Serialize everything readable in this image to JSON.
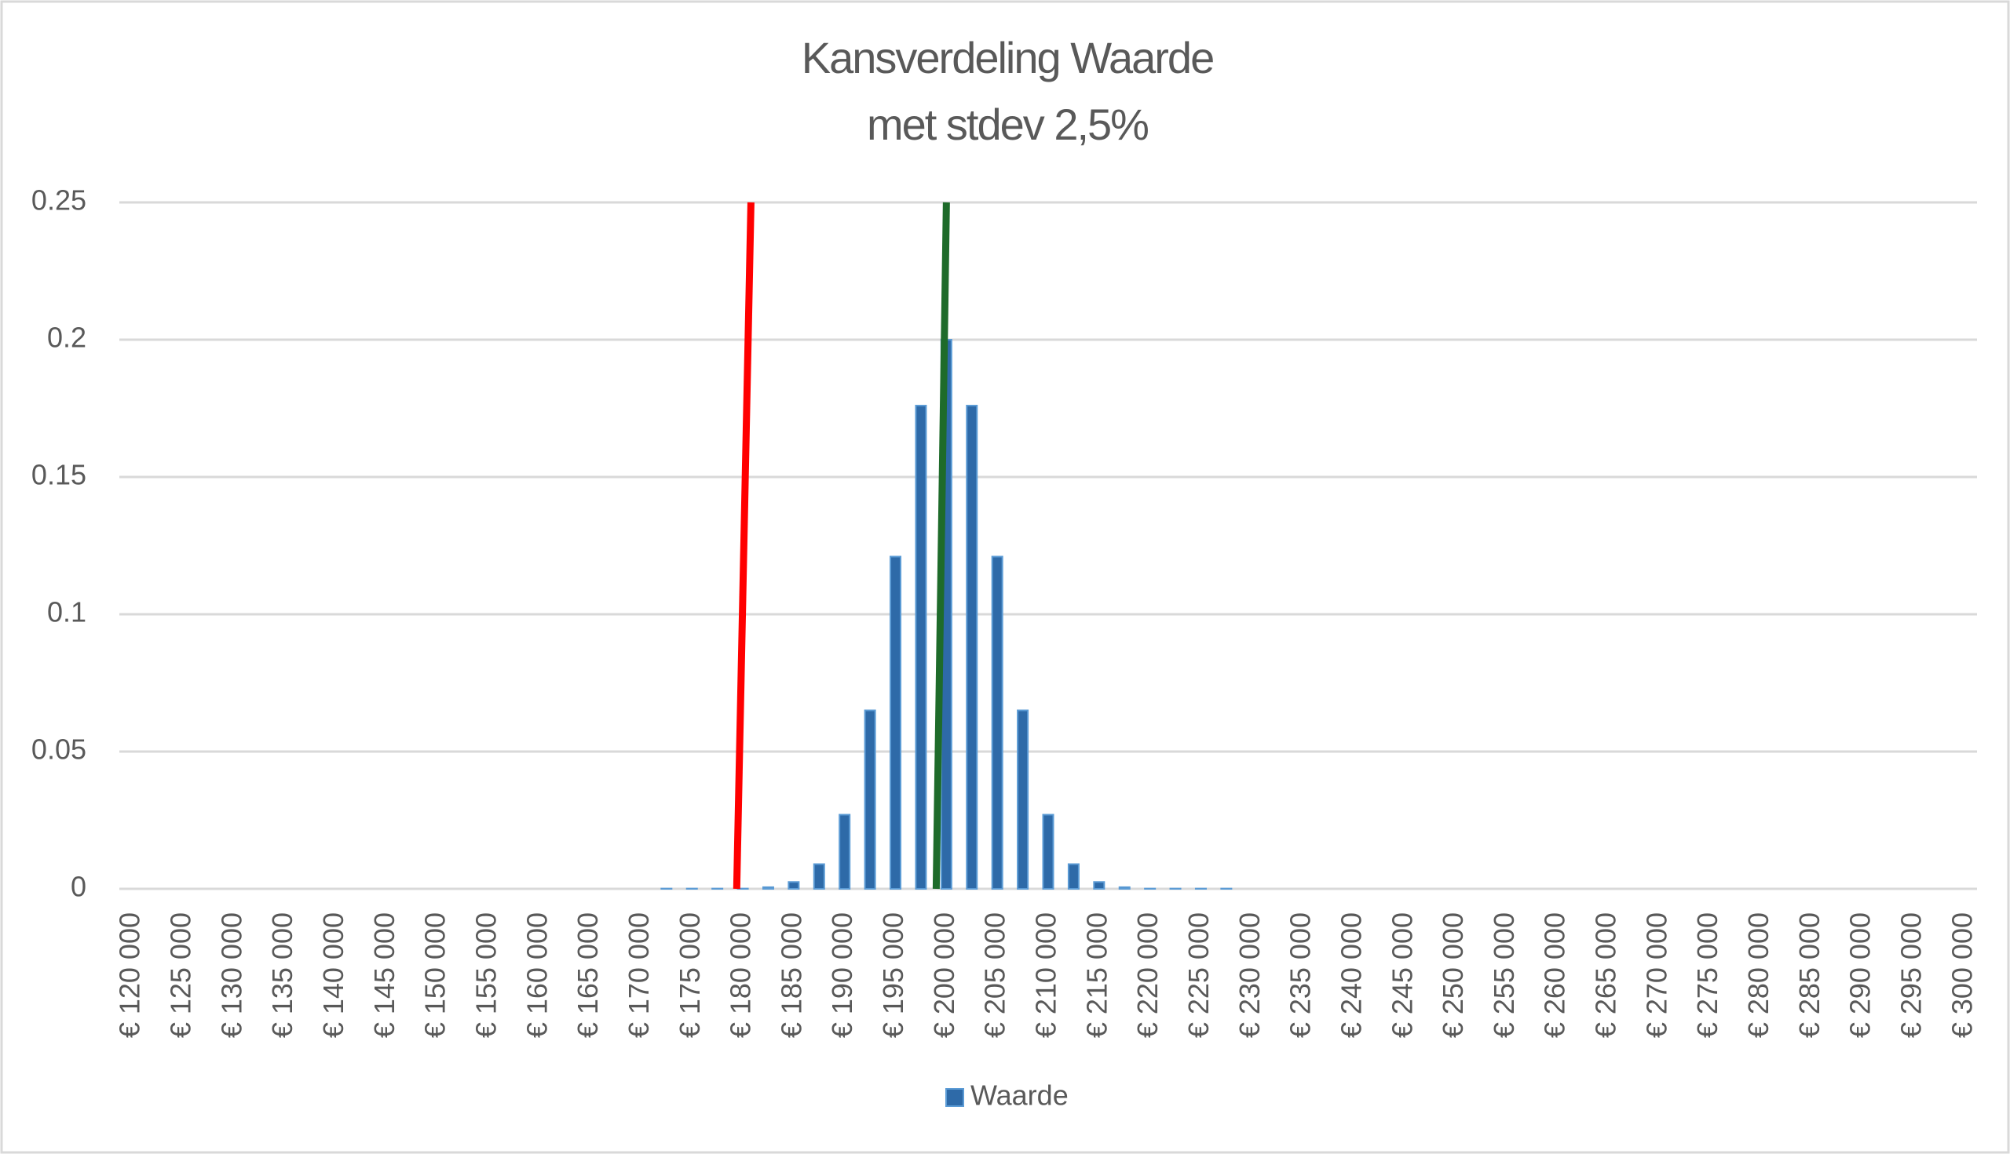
{
  "chart_data": {
    "type": "bar",
    "title": "Kansverdeling Waarde",
    "subtitle": "met stdev 2,5%",
    "categories": [
      "€ 120 000",
      null,
      "€ 125 000",
      null,
      "€ 130 000",
      null,
      "€ 135 000",
      null,
      "€ 140 000",
      null,
      "€ 145 000",
      null,
      "€ 150 000",
      null,
      "€ 155 000",
      null,
      "€ 160 000",
      null,
      "€ 165 000",
      null,
      "€ 170 000",
      null,
      "€ 175 000",
      null,
      "€ 180 000",
      null,
      "€ 185 000",
      null,
      "€ 190 000",
      null,
      "€ 195 000",
      null,
      "€ 200 000",
      null,
      "€ 205 000",
      null,
      "€ 210 000",
      null,
      "€ 215 000",
      null,
      "€ 220 000",
      null,
      "€ 225 000",
      null,
      "€ 230 000",
      null,
      "€ 235 000",
      null,
      "€ 240 000",
      null,
      "€ 245 000",
      null,
      "€ 250 000",
      null,
      "€ 255 000",
      null,
      "€ 260 000",
      null,
      "€ 265 000",
      null,
      "€ 270 000",
      null,
      "€ 275 000",
      null,
      "€ 280 000",
      null,
      "€ 285 000",
      null,
      "€ 290 000",
      null,
      "€ 295 000",
      null,
      "€ 300 000"
    ],
    "series": [
      {
        "name": "Waarde",
        "color": "#2e6aa8",
        "values": [
          0,
          0,
          0,
          0,
          0,
          0,
          0,
          0,
          0,
          0,
          0,
          0,
          0,
          0,
          0,
          0,
          0,
          0,
          0,
          0,
          0,
          0.0001,
          0.0001,
          0.0001,
          0.0001,
          0.0006,
          0.0025,
          0.009,
          0.027,
          0.065,
          0.121,
          0.176,
          0.2,
          0.176,
          0.121,
          0.065,
          0.027,
          0.009,
          0.0025,
          0.0006,
          0.0001,
          0.0001,
          0.0001,
          0.0001,
          0,
          0,
          0,
          0,
          0,
          0,
          0,
          0,
          0,
          0,
          0,
          0,
          0,
          0,
          0,
          0,
          0,
          0,
          0,
          0,
          0,
          0,
          0,
          0,
          0,
          0,
          0,
          0,
          0
        ]
      }
    ],
    "lines": [
      {
        "color": "#ff0000",
        "x": [
          179400,
          180800
        ],
        "y": [
          0,
          0.25
        ]
      },
      {
        "color": "#1e6b2a",
        "x": [
          199000,
          200000
        ],
        "y": [
          0,
          0.25
        ]
      }
    ],
    "xlim": [
      120000,
      300000
    ],
    "ylim": [
      0,
      0.25
    ],
    "yticks": [
      0,
      0.05,
      0.1,
      0.15,
      0.2,
      0.25
    ],
    "grid": true,
    "legend": "bottom"
  }
}
